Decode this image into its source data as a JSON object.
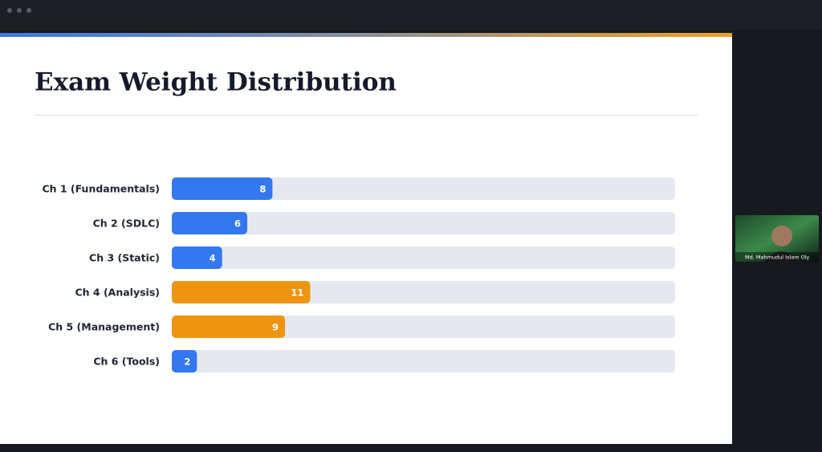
{
  "slide": {
    "title": "Exam Weight Distribution"
  },
  "chart_data": {
    "type": "hbar",
    "categories": [
      "Ch 1 (Fundamentals)",
      "Ch 2 (SDLC)",
      "Ch 3 (Static)",
      "Ch 4 (Analysis)",
      "Ch 5 (Management)",
      "Ch 6 (Tools)"
    ],
    "values": [
      8,
      6,
      4,
      11,
      9,
      2
    ],
    "colors": [
      "#3478f0",
      "#3478f0",
      "#3478f0",
      "#ee9410",
      "#ee9410",
      "#3478f0"
    ],
    "xlim": [
      0,
      40
    ]
  },
  "participant": {
    "name": "Md. Mahmudul Islam Oly"
  }
}
